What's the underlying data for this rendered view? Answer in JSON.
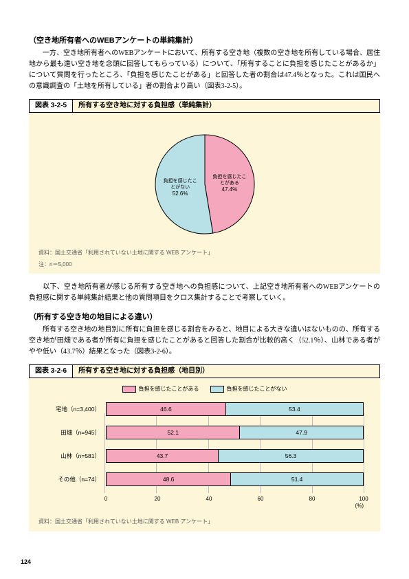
{
  "section1": {
    "heading": "（空き地所有者へのWEBアンケートの単純集計）",
    "para": "　一方、空き地所有者へのWEBアンケートにおいて、所有する空き地（複数の空き地を所有している場合、居住地から最も遠い空き地を念頭に回答してもらっている）について、「所有することに負担を感じたことがあるか」について質問を行ったところ、「負担を感じたことがある」と回答した者の割合は47.4％となった。これは国民への意識調査の「土地を所有している」者の割合より高い（図表3-2-5）。"
  },
  "fig325": {
    "num": "図表 3-2-5",
    "title": "所有する空き地に対する負担感（単純集計）",
    "pie": {
      "type": "pie",
      "radius": 72,
      "background_color": "#fdf6d8",
      "slices": [
        {
          "label": "負担を感じたことがある",
          "value": 47.4,
          "color": "#f4a7bd",
          "text_color": "#000000"
        },
        {
          "label": "負担を感じたことがない",
          "value": 52.6,
          "color": "#b7e0e7",
          "text_color": "#000000"
        }
      ],
      "border_color": "#000000",
      "label_fontsize": 7
    },
    "source": "資料：国土交通省「利用されていない土地に関する WEB アンケート」",
    "note": "注：n＝5,000"
  },
  "midpara": "　以下、空き地所有者が感じる所有する空き地への負担感について、上記空き地所有者へのWEBアンケートの負担感に関する単純集計結果と他の質問項目をクロス集計することで考察していく。",
  "section2": {
    "heading": "（所有する空き地の地目による違い）",
    "para": "　所有する空き地の地目別に所有に負担を感じる割合をみると、地目による大きな違いはないものの、所有する空き地が田畑である者が所有に負担を感じたことがあると回答した割合が比較的高く（52.1％）、山林である者がやや低い（43.7％）結果となった（図表3-2-6）。"
  },
  "fig326": {
    "num": "図表 3-2-6",
    "title": "所有する空き地に対する負担感（地目別）",
    "legend": [
      {
        "label": "負担を感じたことがある",
        "color": "#f4a7bd"
      },
      {
        "label": "負担を感じたことがない",
        "color": "#b7e0e7"
      }
    ],
    "type": "stacked-bar-horizontal",
    "xlim": [
      0,
      100
    ],
    "xtick_step": 20,
    "xticks": [
      "0",
      "20",
      "40",
      "60",
      "80",
      "100"
    ],
    "xunit": "(%)",
    "bar_border": "#000000",
    "grid_color": "#bdbdbd",
    "panel_background": "#fdf6d8",
    "rows": [
      {
        "label": "宅地（n=3,400）",
        "a": 46.6,
        "b": 53.4
      },
      {
        "label": "田畑（n=945）",
        "a": 52.1,
        "b": 47.9
      },
      {
        "label": "山林（n=581）",
        "a": 43.7,
        "b": 56.3
      },
      {
        "label": "その他（n=74）",
        "a": 48.6,
        "b": 51.4
      }
    ],
    "colors": {
      "a": "#f4a7bd",
      "b": "#b7e0e7"
    },
    "source": "資料：国土交通省「利用されていない土地に関する WEB アンケート」"
  },
  "page_number": "124"
}
